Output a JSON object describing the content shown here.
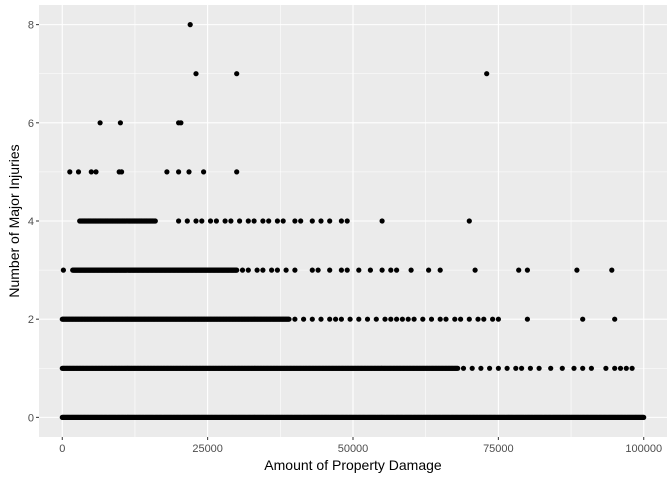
{
  "chart_data": {
    "type": "scatter",
    "title": "",
    "xlabel": "Amount of Property Damage",
    "ylabel": "Number of Major Injuries",
    "xlim": [
      -4000,
      104000
    ],
    "ylim": [
      -0.4,
      8.4
    ],
    "x_ticks": [
      0,
      25000,
      50000,
      75000,
      100000
    ],
    "x_tick_labels": [
      "0",
      "25000",
      "50000",
      "75000",
      "100000"
    ],
    "y_ticks": [
      0,
      2,
      4,
      6,
      8
    ],
    "y_tick_labels": [
      "0",
      "2",
      "4",
      "6",
      "8"
    ],
    "grid": true,
    "legend": "none",
    "colors": {
      "panel_background": "#ebebeb",
      "grid_major": "#ffffff",
      "point": "#000000",
      "tick_text": "#4d4d4d",
      "tick_mark": "#333333"
    },
    "series": [
      {
        "points": [
          {
            "x": 22000,
            "y": 8
          },
          {
            "x": 23000,
            "y": 7
          },
          {
            "x": 30000,
            "y": 7
          },
          {
            "x": 73000,
            "y": 7
          },
          {
            "x": 6500,
            "y": 6
          },
          {
            "x": 10000,
            "y": 6
          },
          {
            "x": 20000,
            "y": 6
          },
          {
            "x": 20400,
            "y": 6
          },
          {
            "x": 1300,
            "y": 5
          },
          {
            "x": 2800,
            "y": 5
          },
          {
            "x": 5000,
            "y": 5
          },
          {
            "x": 5800,
            "y": 5
          },
          {
            "x": 9800,
            "y": 5
          },
          {
            "x": 10200,
            "y": 5
          },
          {
            "x": 18000,
            "y": 5
          },
          {
            "x": 20000,
            "y": 5
          },
          {
            "x": 21800,
            "y": 5
          },
          {
            "x": 24300,
            "y": 5
          },
          {
            "x": 30000,
            "y": 5
          },
          {
            "x": 55000,
            "y": 4
          },
          {
            "x": 70000,
            "y": 4
          },
          {
            "x": 200,
            "y": 3
          },
          {
            "x": 55000,
            "y": 3
          },
          {
            "x": 71000,
            "y": 3
          },
          {
            "x": 78500,
            "y": 3
          },
          {
            "x": 80000,
            "y": 3
          },
          {
            "x": 88500,
            "y": 3
          },
          {
            "x": 94500,
            "y": 3
          },
          {
            "x": 80000,
            "y": 2
          },
          {
            "x": 89500,
            "y": 2
          },
          {
            "x": 95000,
            "y": 2
          }
        ]
      }
    ],
    "dense_rows": [
      {
        "y": 0,
        "x_from": 0,
        "x_to": 100000,
        "count": 720,
        "scattered": []
      },
      {
        "y": 1,
        "x_from": 0,
        "x_to": 68000,
        "count": 480,
        "scattered": [
          69000,
          70500,
          72000,
          73500,
          75000,
          76500,
          78000,
          79000,
          80500,
          82000,
          84000,
          86000,
          88000,
          89500,
          91000,
          93500,
          95000,
          96000,
          97000,
          98000
        ]
      },
      {
        "y": 2,
        "x_from": 0,
        "x_to": 39000,
        "count": 300,
        "scattered": [
          40000,
          41500,
          43000,
          44500,
          46000,
          47000,
          48000,
          49500,
          51000,
          52500,
          54000,
          55500,
          56500,
          57500,
          58500,
          59500,
          60500,
          62000,
          63500,
          65000,
          66000,
          67500,
          68500,
          70000,
          71500,
          72500,
          74000,
          75000
        ]
      },
      {
        "y": 3,
        "x_from": 1800,
        "x_to": 30000,
        "count": 230,
        "scattered": [
          31000,
          32000,
          33500,
          34500,
          36000,
          37000,
          38500,
          40000,
          43000,
          44000,
          46000,
          48000,
          49000,
          51000,
          53000,
          56500,
          57500,
          60000,
          63000,
          65000
        ]
      },
      {
        "y": 4,
        "x_from": 3000,
        "x_to": 16000,
        "count": 90,
        "scattered": [
          20000,
          21500,
          23000,
          24000,
          25500,
          26500,
          28000,
          29000,
          30500,
          32000,
          33000,
          34500,
          35500,
          37000,
          38000,
          40000,
          41000,
          43000,
          44500,
          46000,
          48000,
          49000
        ]
      }
    ]
  }
}
